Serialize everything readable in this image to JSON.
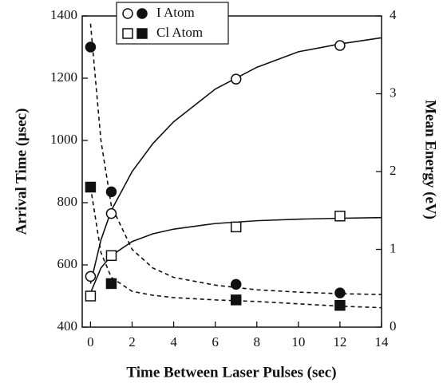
{
  "chart_data": {
    "type": "scatter",
    "x_label": "Time Between Laser Pulses (sec)",
    "y_label": "Arrival Time (μsec)",
    "y2_label": "Mean Energy (eV)",
    "xlim": [
      -0.4,
      14
    ],
    "xticks": [
      0,
      2,
      4,
      6,
      8,
      10,
      12,
      14
    ],
    "ylim": [
      400,
      1400
    ],
    "yticks": [
      400,
      600,
      800,
      1000,
      1200,
      1400
    ],
    "y2lim": [
      0,
      4
    ],
    "y2ticks": [
      0,
      1,
      2,
      3,
      4
    ],
    "color": "#111111",
    "series": [
      {
        "name": "I Atom",
        "marker": "circle",
        "x": [
          0,
          1,
          7,
          12
        ],
        "values": [
          563,
          765,
          1197,
          1305
        ],
        "energy": [
          3.6,
          1.74,
          0.55,
          0.44
        ],
        "fit_x": [
          0,
          0.5,
          1,
          2,
          3,
          4,
          6,
          8,
          10,
          12,
          14
        ],
        "fit_values": [
          540,
          680,
          775,
          900,
          990,
          1060,
          1165,
          1235,
          1285,
          1310,
          1330
        ],
        "fit_energy": [
          3.9,
          2.4,
          1.56,
          1.0,
          0.76,
          0.64,
          0.54,
          0.48,
          0.45,
          0.43,
          0.42
        ]
      },
      {
        "name": "Cl Atom",
        "marker": "square",
        "x": [
          0,
          1,
          7,
          12
        ],
        "values": [
          500,
          630,
          722,
          757
        ],
        "energy": [
          1.8,
          0.56,
          0.35,
          0.28
        ],
        "fit_x": [
          0,
          0.5,
          1,
          2,
          3,
          4,
          6,
          8,
          10,
          12,
          14
        ],
        "fit_values": [
          510,
          590,
          630,
          675,
          700,
          715,
          733,
          742,
          747,
          750,
          752
        ],
        "fit_energy": [
          1.8,
          0.96,
          0.64,
          0.46,
          0.41,
          0.38,
          0.35,
          0.33,
          0.3,
          0.27,
          0.25
        ]
      }
    ]
  }
}
